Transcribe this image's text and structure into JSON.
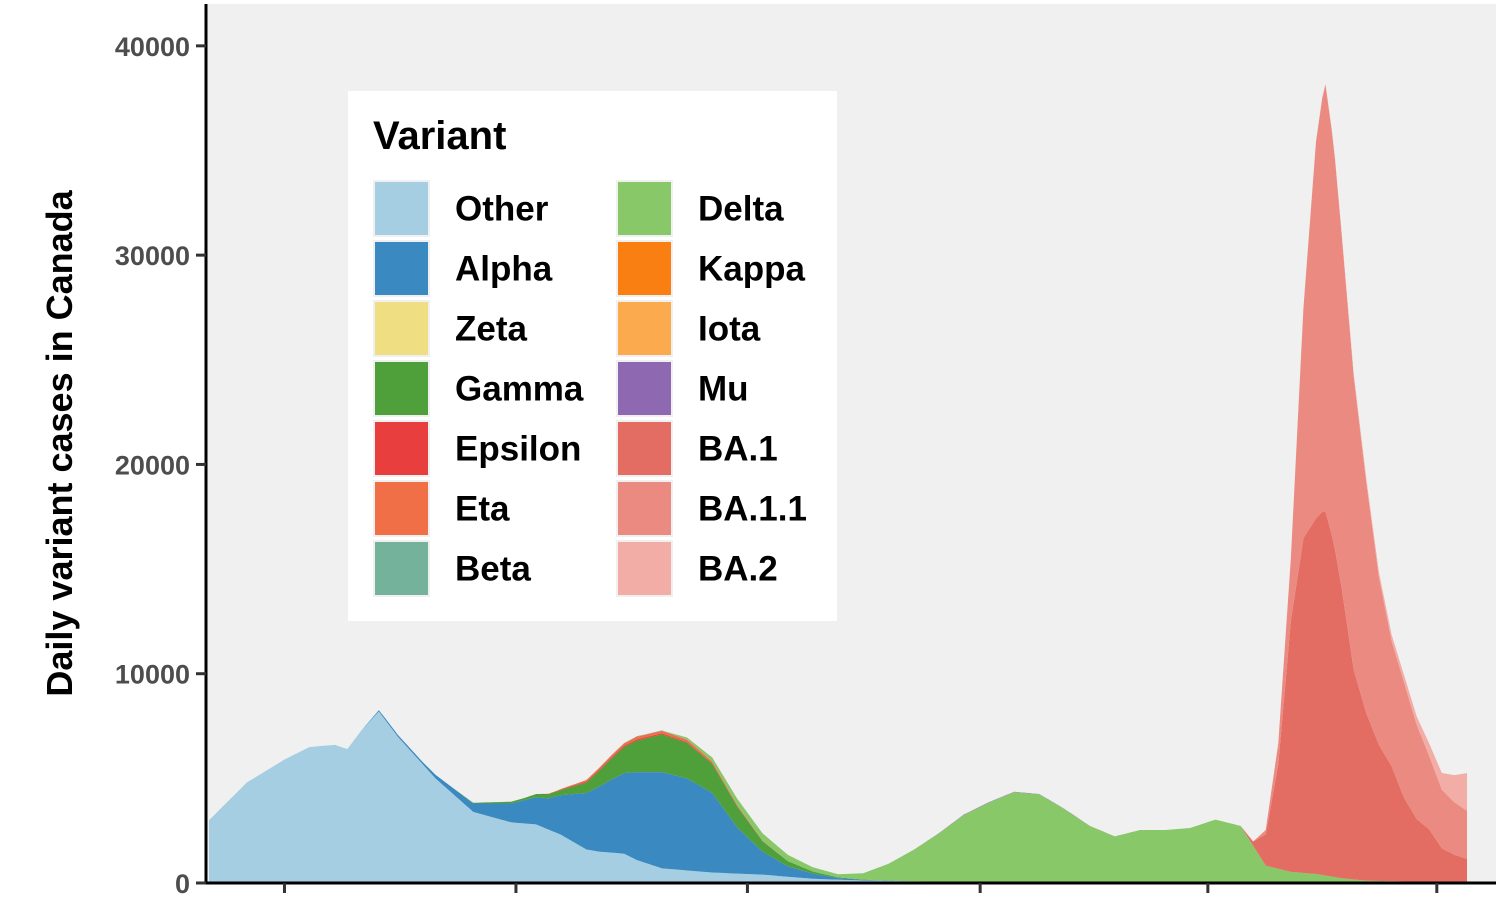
{
  "chart_data": {
    "type": "area",
    "stacked": true,
    "ylabel": "Daily variant cases in Canada",
    "xlabel": "",
    "ylim": [
      0,
      42000
    ],
    "yticks": [
      0,
      10000,
      20000,
      30000,
      40000
    ],
    "ytick_labels": [
      "0",
      "10000",
      "20000",
      "30000",
      "40000"
    ],
    "xtick_count": 6,
    "x_index_range": [
      0,
      100
    ],
    "xtick_positions": [
      6,
      24.4,
      42.8,
      61.3,
      79.4,
      97.6
    ],
    "grid": false,
    "background": "#f0f0f0",
    "legend": {
      "title": "Variant",
      "placement": "top-left",
      "columns": 2
    },
    "series": [
      {
        "name": "Other",
        "color": "#a6cee3",
        "points": [
          [
            0,
            3000
          ],
          [
            3,
            4800
          ],
          [
            6,
            5900
          ],
          [
            8,
            6500
          ],
          [
            10,
            6600
          ],
          [
            11,
            6400
          ],
          [
            12,
            7200
          ],
          [
            13.5,
            8200
          ],
          [
            15,
            7000
          ],
          [
            18,
            5000
          ],
          [
            21,
            3400
          ],
          [
            24,
            2900
          ],
          [
            26,
            2800
          ],
          [
            28,
            2300
          ],
          [
            30,
            1600
          ],
          [
            31,
            1500
          ],
          [
            33,
            1400
          ],
          [
            34,
            1100
          ],
          [
            36,
            700
          ],
          [
            38,
            600
          ],
          [
            40,
            500
          ],
          [
            44,
            400
          ],
          [
            48,
            200
          ],
          [
            52,
            120
          ],
          [
            56,
            80
          ],
          [
            60,
            50
          ],
          [
            70,
            30
          ],
          [
            80,
            30
          ],
          [
            90,
            30
          ],
          [
            100,
            30
          ]
        ]
      },
      {
        "name": "Alpha",
        "color": "#3a89c0",
        "points": [
          [
            0,
            0
          ],
          [
            12,
            0
          ],
          [
            14,
            80
          ],
          [
            17,
            100
          ],
          [
            19,
            250
          ],
          [
            21,
            400
          ],
          [
            24,
            900
          ],
          [
            27,
            1500
          ],
          [
            30,
            2700
          ],
          [
            32,
            3500
          ],
          [
            34,
            4200
          ],
          [
            36,
            4600
          ],
          [
            38,
            4400
          ],
          [
            40,
            3800
          ],
          [
            42,
            2200
          ],
          [
            44,
            1100
          ],
          [
            46,
            500
          ],
          [
            48,
            250
          ],
          [
            50,
            80
          ],
          [
            52,
            30
          ],
          [
            56,
            0
          ],
          [
            100,
            0
          ]
        ]
      },
      {
        "name": "Zeta",
        "color": "#f0de82",
        "points": [
          [
            0,
            0
          ],
          [
            100,
            0
          ]
        ]
      },
      {
        "name": "Gamma",
        "color": "#4f9f3b",
        "points": [
          [
            0,
            0
          ],
          [
            19,
            0
          ],
          [
            22,
            50
          ],
          [
            25,
            100
          ],
          [
            28,
            250
          ],
          [
            30,
            500
          ],
          [
            32,
            1000
          ],
          [
            34,
            1500
          ],
          [
            36,
            1800
          ],
          [
            38,
            1700
          ],
          [
            40,
            1400
          ],
          [
            42,
            1000
          ],
          [
            44,
            500
          ],
          [
            46,
            250
          ],
          [
            48,
            100
          ],
          [
            50,
            30
          ],
          [
            54,
            0
          ],
          [
            100,
            0
          ]
        ]
      },
      {
        "name": "Epsilon",
        "color": "#e83e3e",
        "points": [
          [
            0,
            0
          ],
          [
            26,
            0
          ],
          [
            30,
            50
          ],
          [
            34,
            60
          ],
          [
            38,
            40
          ],
          [
            44,
            0
          ],
          [
            100,
            0
          ]
        ]
      },
      {
        "name": "Eta",
        "color": "#f06f46",
        "points": [
          [
            0,
            0
          ],
          [
            27,
            0
          ],
          [
            30,
            70
          ],
          [
            34,
            130
          ],
          [
            38,
            110
          ],
          [
            42,
            50
          ],
          [
            46,
            0
          ],
          [
            100,
            0
          ]
        ]
      },
      {
        "name": "Beta",
        "color": "#74b29c",
        "points": [
          [
            0,
            0
          ],
          [
            30,
            0
          ],
          [
            34,
            20
          ],
          [
            38,
            20
          ],
          [
            44,
            0
          ],
          [
            100,
            0
          ]
        ]
      },
      {
        "name": "Delta",
        "color": "#88c868",
        "points": [
          [
            0,
            0
          ],
          [
            36,
            0
          ],
          [
            38,
            80
          ],
          [
            40,
            180
          ],
          [
            42,
            300
          ],
          [
            44,
            350
          ],
          [
            46,
            300
          ],
          [
            48,
            200
          ],
          [
            50,
            150
          ],
          [
            52,
            300
          ],
          [
            54,
            800
          ],
          [
            56,
            1500
          ],
          [
            58,
            2300
          ],
          [
            60,
            3200
          ],
          [
            62,
            3800
          ],
          [
            64,
            4300
          ],
          [
            66,
            4200
          ],
          [
            68,
            3500
          ],
          [
            70,
            2700
          ],
          [
            72,
            2200
          ],
          [
            74,
            2500
          ],
          [
            76,
            2500
          ],
          [
            78,
            2600
          ],
          [
            80,
            3000
          ],
          [
            82,
            2700
          ],
          [
            84,
            800
          ],
          [
            86,
            500
          ],
          [
            88,
            400
          ],
          [
            90,
            200
          ],
          [
            92,
            80
          ],
          [
            96,
            30
          ],
          [
            100,
            20
          ]
        ]
      },
      {
        "name": "Kappa",
        "color": "#fa7f12",
        "points": [
          [
            0,
            0
          ],
          [
            100,
            0
          ]
        ]
      },
      {
        "name": "Iota",
        "color": "#fbab4e",
        "points": [
          [
            0,
            0
          ],
          [
            100,
            0
          ]
        ]
      },
      {
        "name": "Mu",
        "color": "#8e69b1",
        "points": [
          [
            0,
            0
          ],
          [
            56,
            0
          ],
          [
            60,
            20
          ],
          [
            66,
            15
          ],
          [
            72,
            0
          ],
          [
            100,
            0
          ]
        ]
      },
      {
        "name": "BA.1",
        "color": "#e46d63",
        "points": [
          [
            0,
            0
          ],
          [
            82,
            0
          ],
          [
            83,
            200
          ],
          [
            84,
            1500
          ],
          [
            85,
            5000
          ],
          [
            86,
            12000
          ],
          [
            87,
            16000
          ],
          [
            88,
            17000
          ],
          [
            88.7,
            17500
          ],
          [
            89.4,
            16000
          ],
          [
            90,
            14000
          ],
          [
            91,
            10000
          ],
          [
            92,
            8000
          ],
          [
            93,
            6500
          ],
          [
            94,
            5500
          ],
          [
            95,
            4000
          ],
          [
            96,
            3000
          ],
          [
            97,
            2500
          ],
          [
            98,
            1600
          ],
          [
            99,
            1300
          ],
          [
            100,
            1100
          ]
        ]
      },
      {
        "name": "BA.1.1",
        "color": "#ea8a81",
        "points": [
          [
            0,
            0
          ],
          [
            82,
            0
          ],
          [
            83,
            0
          ],
          [
            84,
            200
          ],
          [
            85,
            1000
          ],
          [
            86,
            3000
          ],
          [
            87,
            11000
          ],
          [
            88,
            18000
          ],
          [
            88.7,
            20500
          ],
          [
            89.4,
            19000
          ],
          [
            90,
            17000
          ],
          [
            91,
            14000
          ],
          [
            92,
            11000
          ],
          [
            93,
            8000
          ],
          [
            94,
            6000
          ],
          [
            95,
            5500
          ],
          [
            96,
            4500
          ],
          [
            97,
            3500
          ],
          [
            98,
            2800
          ],
          [
            99,
            2500
          ],
          [
            100,
            2300
          ]
        ]
      },
      {
        "name": "BA.2",
        "color": "#f2ada6",
        "points": [
          [
            0,
            0
          ],
          [
            86,
            0
          ],
          [
            88,
            30
          ],
          [
            90,
            100
          ],
          [
            92,
            200
          ],
          [
            94,
            300
          ],
          [
            96,
            400
          ],
          [
            98,
            800
          ],
          [
            99,
            1300
          ],
          [
            100,
            1800
          ]
        ]
      }
    ]
  }
}
